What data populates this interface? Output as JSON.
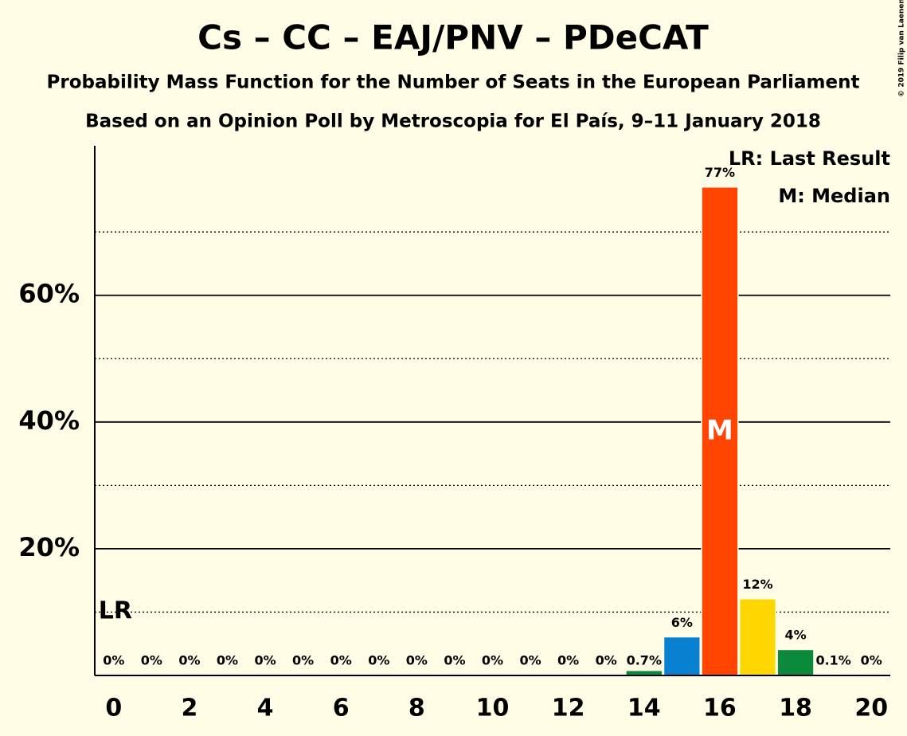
{
  "chart_data": {
    "type": "bar",
    "title": "Cs – CC – EAJ/PNV – PDeCAT",
    "subtitle": "Probability Mass Function for the Number of Seats in the European Parliament",
    "source": "Based on an Opinion Poll by Metroscopia for El País, 9–11 January 2018",
    "x": [
      0,
      1,
      2,
      3,
      4,
      5,
      6,
      7,
      8,
      9,
      10,
      11,
      12,
      13,
      14,
      15,
      16,
      17,
      18,
      19,
      20
    ],
    "values": [
      0,
      0,
      0,
      0,
      0,
      0,
      0,
      0,
      0,
      0,
      0,
      0,
      0,
      0,
      0.7,
      6,
      77,
      12,
      4,
      0.1,
      0
    ],
    "value_labels": [
      "0%",
      "0%",
      "0%",
      "0%",
      "0%",
      "0%",
      "0%",
      "0%",
      "0%",
      "0%",
      "0%",
      "0%",
      "0%",
      "0%",
      "0.7%",
      "6%",
      "77%",
      "12%",
      "4%",
      "0.1%",
      "0%"
    ],
    "colors": [
      "#0b8a3c",
      "#0b8a3c",
      "#0b8a3c",
      "#0b8a3c",
      "#0b8a3c",
      "#0b8a3c",
      "#0b8a3c",
      "#0b8a3c",
      "#0b8a3c",
      "#0b8a3c",
      "#0b8a3c",
      "#0b8a3c",
      "#0b8a3c",
      "#0b8a3c",
      "#0b8a3c",
      "#0a80d0",
      "#ff4500",
      "#ffd700",
      "#0b8a3c",
      "#0b8a3c",
      "#0b8a3c"
    ],
    "xlim": [
      -0.5,
      20.5
    ],
    "xticks": [
      0,
      2,
      4,
      6,
      8,
      10,
      12,
      14,
      16,
      18,
      20
    ],
    "ylim": [
      0,
      83.6
    ],
    "yticks": [
      {
        "value": 20,
        "label": "20%"
      },
      {
        "value": 40,
        "label": "40%"
      },
      {
        "value": 60,
        "label": "60%"
      }
    ],
    "minor_yticks": [
      10,
      30,
      50,
      70
    ],
    "last_result": {
      "x": 0,
      "label": "LR"
    },
    "median": {
      "x": 16,
      "label": "M"
    },
    "legend": [
      "LR: Last Result",
      "M: Median"
    ],
    "copyright": "© 2019 Filip van Laenen"
  }
}
